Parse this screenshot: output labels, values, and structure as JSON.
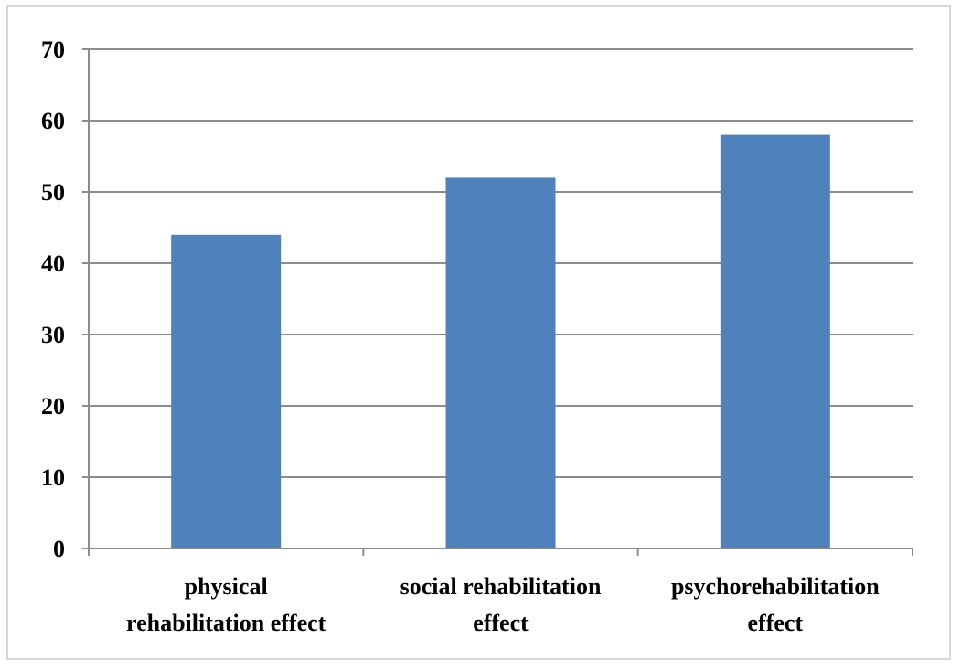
{
  "chart_data": {
    "type": "bar",
    "title": "",
    "xlabel": "",
    "ylabel": "",
    "categories": [
      [
        "physical",
        "rehabilitation effect"
      ],
      [
        "social rehabilitation",
        "effect"
      ],
      [
        "psychorehabilitation",
        "effect"
      ]
    ],
    "values": [
      44,
      52,
      58
    ],
    "ylim": [
      0,
      70
    ],
    "yticks": [
      0,
      10,
      20,
      30,
      40,
      50,
      60,
      70
    ],
    "grid": true,
    "legend": "none",
    "colors": {
      "bar": "#4f81bd",
      "grid": "#8c8c8c",
      "axis": "#8c8c8c",
      "frame": "#d9d9d9"
    }
  }
}
